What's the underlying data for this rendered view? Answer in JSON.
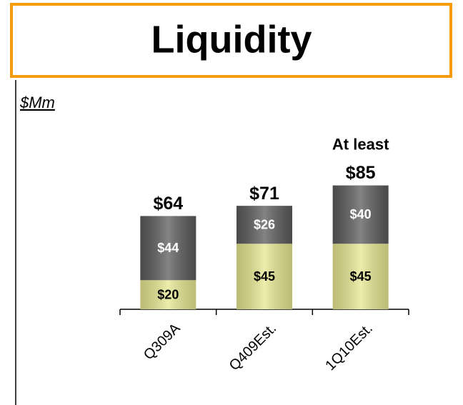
{
  "chart_data": {
    "type": "stacked_bar",
    "title": "Liquidity",
    "unit_label": "$Mm",
    "categories": [
      "Q309A",
      "Q409Est.",
      "1Q10Est."
    ],
    "series": [
      {
        "color": "#e6e690",
        "label_color": "#000000",
        "values": [
          20,
          45,
          45
        ],
        "value_labels": [
          "$20",
          "$45",
          "$45"
        ]
      },
      {
        "color": "#5a5a5a",
        "label_color": "#ffffff",
        "values": [
          44,
          26,
          40
        ],
        "value_labels": [
          "$44",
          "$26",
          "$40"
        ]
      }
    ],
    "total_labels": [
      "$64",
      "$71",
      "$85"
    ],
    "annotation": "At least",
    "ylim": [
      0,
      100
    ]
  }
}
